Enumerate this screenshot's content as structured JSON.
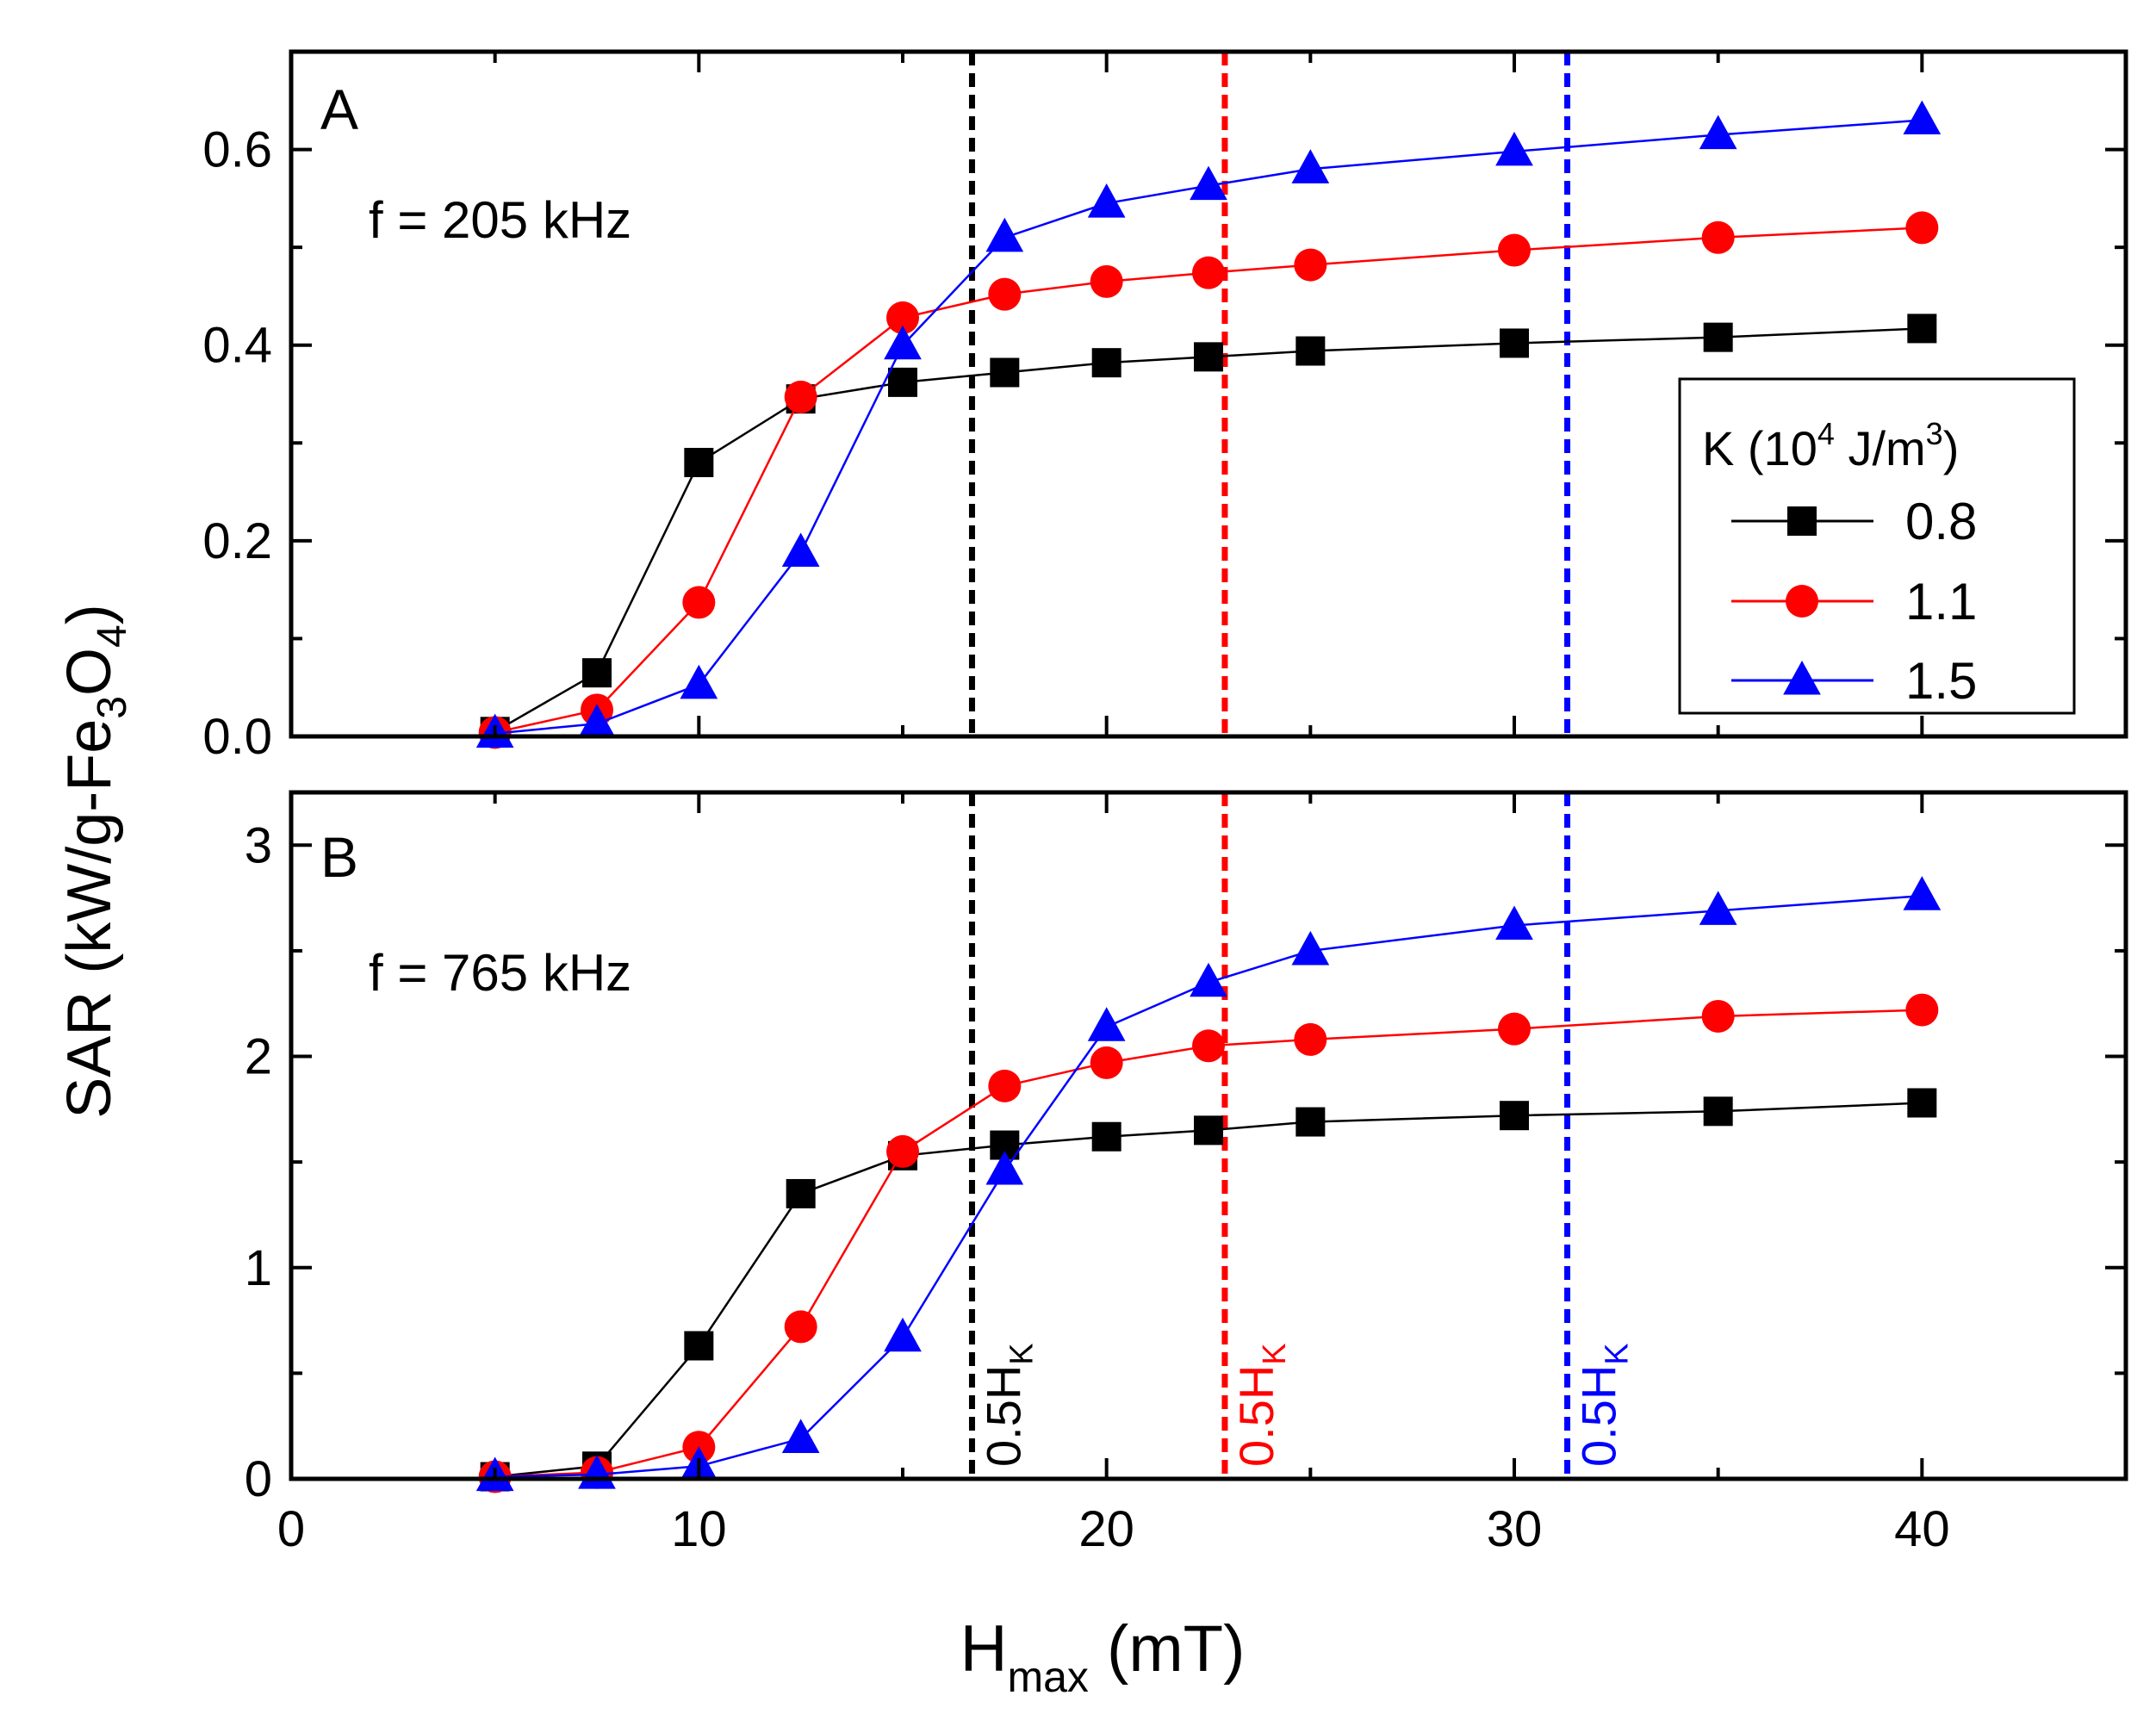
{
  "figure": {
    "ylabel": {
      "main": "SAR (kW/g-Fe",
      "sub1": "3",
      "mid": "O",
      "sub2": "4",
      "end": ")"
    },
    "xlabel": {
      "main": "H",
      "sub": "max",
      "end": " (mT)"
    },
    "hk_label": {
      "main": "0.5H",
      "sub": "K"
    }
  },
  "legend": {
    "title": {
      "pre": "K (10",
      "sup1": "4",
      "mid": " J/m",
      "sup2": "3",
      "end": ")"
    }
  },
  "colors": {
    "k08": "#000000",
    "k11": "#ff0000",
    "k15": "#0000ff",
    "axis": "#000000"
  },
  "chart_data": [
    {
      "panel": "A",
      "type": "line",
      "label": "A",
      "annotation": "f = 205 kHz",
      "xlabel": "H_max (mT)",
      "ylabel": "SAR (kW/g-Fe3O4)",
      "xlim": [
        0,
        45
      ],
      "ylim": [
        0,
        0.7
      ],
      "x_ticks": [
        0,
        10,
        20,
        30,
        40
      ],
      "y_ticks": [
        0.0,
        0.2,
        0.4,
        0.6
      ],
      "y_tick_labels": [
        "0.0",
        "0.2",
        "0.4",
        "0.6"
      ],
      "x": [
        5,
        7.5,
        10,
        12.5,
        15,
        17.5,
        20,
        22.5,
        25,
        30,
        35,
        40
      ],
      "series": [
        {
          "name": "0.8",
          "marker": "square",
          "color": "#000000",
          "values": [
            0.005,
            0.065,
            0.28,
            0.345,
            0.362,
            0.372,
            0.382,
            0.388,
            0.394,
            0.402,
            0.408,
            0.417
          ]
        },
        {
          "name": "1.1",
          "marker": "circle",
          "color": "#ff0000",
          "values": [
            0.004,
            0.027,
            0.137,
            0.347,
            0.428,
            0.452,
            0.465,
            0.474,
            0.482,
            0.497,
            0.51,
            0.52
          ]
        },
        {
          "name": "1.5",
          "marker": "triangle",
          "color": "#0000ff",
          "values": [
            0.003,
            0.013,
            0.053,
            0.188,
            0.4,
            0.51,
            0.545,
            0.563,
            0.58,
            0.598,
            0.615,
            0.63
          ]
        }
      ],
      "vlines": [
        {
          "x": 16.7,
          "color": "#000000"
        },
        {
          "x": 22.9,
          "color": "#ff0000"
        },
        {
          "x": 31.3,
          "color": "#0000ff"
        }
      ]
    },
    {
      "panel": "B",
      "type": "line",
      "label": "B",
      "annotation": "f = 765 kHz",
      "xlabel": "H_max (mT)",
      "ylabel": "SAR (kW/g-Fe3O4)",
      "xlim": [
        0,
        45
      ],
      "ylim": [
        0,
        3.25
      ],
      "x_ticks": [
        0,
        10,
        20,
        30,
        40
      ],
      "x_tick_labels": [
        "0",
        "10",
        "20",
        "30",
        "40"
      ],
      "y_ticks": [
        0,
        1,
        2,
        3
      ],
      "y_tick_labels": [
        "0",
        "1",
        "2",
        "3"
      ],
      "x": [
        5,
        7.5,
        10,
        12.5,
        15,
        17.5,
        20,
        22.5,
        25,
        30,
        35,
        40
      ],
      "series": [
        {
          "name": "0.8",
          "marker": "square",
          "color": "#000000",
          "values": [
            0.01,
            0.06,
            0.63,
            1.35,
            1.53,
            1.58,
            1.62,
            1.65,
            1.69,
            1.72,
            1.74,
            1.78
          ]
        },
        {
          "name": "1.1",
          "marker": "circle",
          "color": "#ff0000",
          "values": [
            0.01,
            0.03,
            0.15,
            0.72,
            1.55,
            1.86,
            1.97,
            2.05,
            2.08,
            2.13,
            2.19,
            2.22
          ]
        },
        {
          "name": "1.5",
          "marker": "triangle",
          "color": "#0000ff",
          "values": [
            0.01,
            0.02,
            0.06,
            0.19,
            0.67,
            1.46,
            2.14,
            2.35,
            2.5,
            2.62,
            2.69,
            2.76
          ]
        }
      ],
      "vlines": [
        {
          "x": 16.7,
          "color": "#000000",
          "label": "0.5H_K"
        },
        {
          "x": 22.9,
          "color": "#ff0000",
          "label": "0.5H_K"
        },
        {
          "x": 31.3,
          "color": "#0000ff",
          "label": "0.5H_K"
        }
      ]
    }
  ]
}
